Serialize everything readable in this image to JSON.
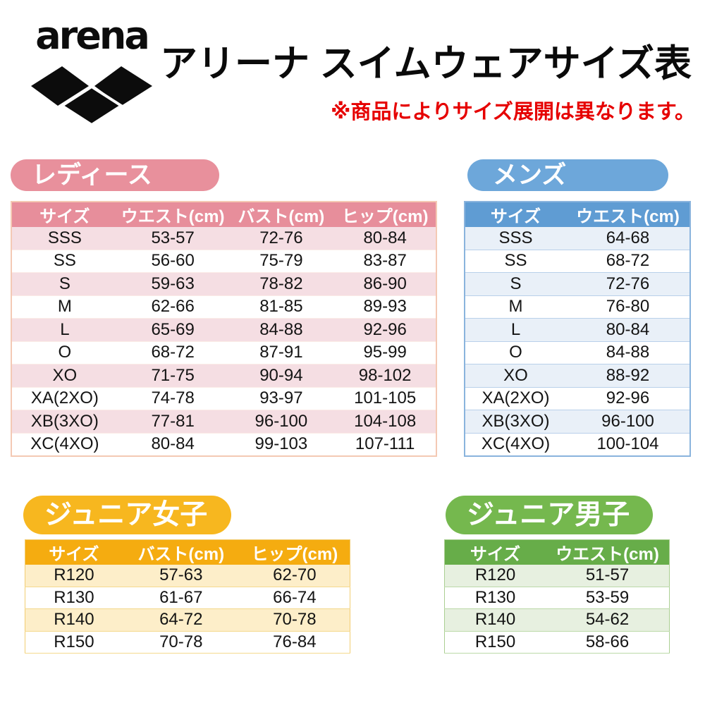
{
  "header": {
    "brand": "arena",
    "title": "アリーナ スイムウェアサイズ表",
    "note": "※商品によりサイズ展開は異なります。"
  },
  "colors": {
    "note_red": "#e60000",
    "logo_black": "#0c0c0c",
    "ladies": {
      "badge": "#e8909c",
      "header": "#e78e9b",
      "row": "#f5dee3"
    },
    "mens": {
      "badge": "#6da7da",
      "header": "#5f9cd3",
      "row": "#e9f0f8"
    },
    "junior_girls": {
      "badge": "#f7b71f",
      "header": "#f5ac10",
      "row": "#fdeec9"
    },
    "junior_boys": {
      "badge": "#75b84e",
      "header": "#67ad49",
      "row": "#e7f0e0"
    }
  },
  "tables": {
    "ladies": {
      "badge": "レディース",
      "columns": [
        "サイズ",
        "ウエスト(cm)",
        "バスト(cm)",
        "ヒップ(cm)"
      ],
      "rows": [
        [
          "SSS",
          "53-57",
          "72-76",
          "80-84"
        ],
        [
          "SS",
          "56-60",
          "75-79",
          "83-87"
        ],
        [
          "S",
          "59-63",
          "78-82",
          "86-90"
        ],
        [
          "M",
          "62-66",
          "81-85",
          "89-93"
        ],
        [
          "L",
          "65-69",
          "84-88",
          "92-96"
        ],
        [
          "O",
          "68-72",
          "87-91",
          "95-99"
        ],
        [
          "XO",
          "71-75",
          "90-94",
          "98-102"
        ],
        [
          "XA(2XO)",
          "74-78",
          "93-97",
          "101-105"
        ],
        [
          "XB(3XO)",
          "77-81",
          "96-100",
          "104-108"
        ],
        [
          "XC(4XO)",
          "80-84",
          "99-103",
          "107-111"
        ]
      ]
    },
    "mens": {
      "badge": "メンズ",
      "columns": [
        "サイズ",
        "ウエスト(cm)"
      ],
      "rows": [
        [
          "SSS",
          "64-68"
        ],
        [
          "SS",
          "68-72"
        ],
        [
          "S",
          "72-76"
        ],
        [
          "M",
          "76-80"
        ],
        [
          "L",
          "80-84"
        ],
        [
          "O",
          "84-88"
        ],
        [
          "XO",
          "88-92"
        ],
        [
          "XA(2XO)",
          "92-96"
        ],
        [
          "XB(3XO)",
          "96-100"
        ],
        [
          "XC(4XO)",
          "100-104"
        ]
      ]
    },
    "junior_girls": {
      "badge": "ジュニア女子",
      "columns": [
        "サイズ",
        "バスト(cm)",
        "ヒップ(cm)"
      ],
      "rows": [
        [
          "R120",
          "57-63",
          "62-70"
        ],
        [
          "R130",
          "61-67",
          "66-74"
        ],
        [
          "R140",
          "64-72",
          "70-78"
        ],
        [
          "R150",
          "70-78",
          "76-84"
        ]
      ]
    },
    "junior_boys": {
      "badge": "ジュニア男子",
      "columns": [
        "サイズ",
        "ウエスト(cm)"
      ],
      "rows": [
        [
          "R120",
          "51-57"
        ],
        [
          "R130",
          "53-59"
        ],
        [
          "R140",
          "54-62"
        ],
        [
          "R150",
          "58-66"
        ]
      ]
    }
  }
}
